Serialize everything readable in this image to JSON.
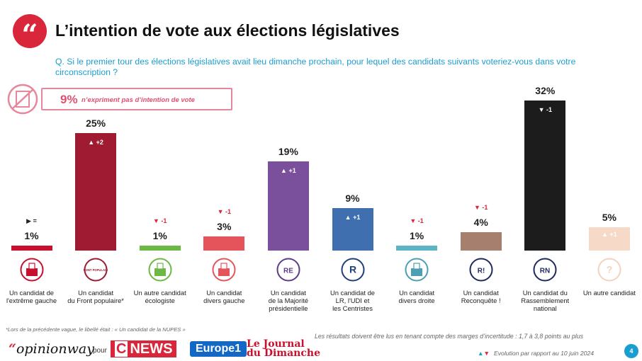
{
  "header": {
    "title": "L’intention de vote aux élections législatives",
    "question": "Q. Si le premier tour des élections législatives avait lieu dimanche prochain, pour lequel des candidats suivants voteriez-vous dans votre circonscription ?"
  },
  "no_intention": {
    "pct": "9%",
    "text": "n’expriment pas d’intention de vote"
  },
  "chart_data": {
    "type": "bar",
    "ylim": [
      0,
      32
    ],
    "categories": [
      "Un candidat de l'extrême gauche",
      "Un candidat du Front populaire*",
      "Un autre candidat écologiste",
      "Un candidat divers gauche",
      "Un candidat de la Majorité présidentielle",
      "Un candidat de LR, l'UDI et les Centristes",
      "Un candidat divers droite",
      "Un candidat Reconquête !",
      "Un candidat du Rassemblement national",
      "Un autre candidat"
    ],
    "values": [
      1,
      25,
      1,
      3,
      19,
      9,
      1,
      4,
      32,
      5
    ],
    "bars": [
      {
        "label_lines": [
          "Un candidat de",
          "l'extrême gauche"
        ],
        "value": 1,
        "pct": "1%",
        "evo": "=",
        "dir": "eq",
        "color": "#c8102e",
        "icon": "extreme-gauche-logo-icon",
        "icon_text": "",
        "icon_color": "#c8102e"
      },
      {
        "label_lines": [
          "Un candidat",
          "du Front populaire*"
        ],
        "value": 25,
        "pct": "25%",
        "evo": "+2",
        "dir": "up",
        "color": "#9e1b32",
        "icon": "front-populaire-logo-icon",
        "icon_text": "FRONT POPULAIRE",
        "icon_color": "#9e1b32"
      },
      {
        "label_lines": [
          "Un autre candidat",
          "écologiste"
        ],
        "value": 1,
        "pct": "1%",
        "evo": "-1",
        "dir": "down",
        "color": "#6bb844",
        "icon": "ecologiste-logo-icon",
        "icon_text": "",
        "icon_color": "#6bb844"
      },
      {
        "label_lines": [
          "Un candidat",
          "divers gauche"
        ],
        "value": 3,
        "pct": "3%",
        "evo": "-1",
        "dir": "down",
        "color": "#e5545b",
        "icon": "divers-gauche-logo-icon",
        "icon_text": "",
        "icon_color": "#e5545b"
      },
      {
        "label_lines": [
          "Un candidat",
          "de la Majorité",
          "présidentielle"
        ],
        "value": 19,
        "pct": "19%",
        "evo": "+1",
        "dir": "up",
        "color": "#7a4f9c",
        "icon": "renaissance-logo-icon",
        "icon_text": "RE",
        "icon_color": "#5c3c86"
      },
      {
        "label_lines": [
          "Un candidat de",
          "LR, l'UDI et",
          "les Centristes"
        ],
        "value": 9,
        "pct": "9%",
        "evo": "+1",
        "dir": "up",
        "color": "#3f6fae",
        "icon": "lr-logo-icon",
        "icon_text": "R",
        "icon_color": "#1f3f7a"
      },
      {
        "label_lines": [
          "Un candidat",
          "divers droite"
        ],
        "value": 1,
        "pct": "1%",
        "evo": "-1",
        "dir": "down",
        "color": "#5bb3c6",
        "icon": "divers-droite-logo-icon",
        "icon_text": "",
        "icon_color": "#4a9fb3"
      },
      {
        "label_lines": [
          "Un candidat",
          "Reconquête !"
        ],
        "value": 4,
        "pct": "4%",
        "evo": "-1",
        "dir": "down",
        "color": "#a77f6f",
        "icon": "reconquete-logo-icon",
        "icon_text": "R!",
        "icon_color": "#1f2a5c"
      },
      {
        "label_lines": [
          "Un candidat du",
          "Rassemblement",
          "national"
        ],
        "value": 32,
        "pct": "32%",
        "evo": "-1",
        "dir": "down",
        "color": "#1c1c1c",
        "icon": "rn-logo-icon",
        "icon_text": "RN",
        "icon_color": "#1f2a5c"
      },
      {
        "label_lines": [
          "Un autre candidat"
        ],
        "value": 5,
        "pct": "5%",
        "evo": "+1",
        "dir": "up",
        "color": "#f6d9c7",
        "icon": "autre-question-icon",
        "icon_text": "?",
        "icon_color": "#f3d2bf"
      }
    ]
  },
  "footer": {
    "footnote": "*Lors de la précédente vague, le libellé était : « Un candidat de la NUPES »",
    "margin_note": "Les résultats doivent être lus en tenant compte des marges d’incertitude : 1,7 à 3,8 points au plus",
    "evolution_legend": "Evolution par rapport au 10 juin 2024",
    "page_number": "4",
    "brands": {
      "opinionway": "opinionway",
      "pour": "pour",
      "cnews_c": "C",
      "cnews": "NEWS",
      "europe1": "Europe1",
      "jdd_line1": "Le Journal",
      "jdd_line2": "du Dimanche"
    }
  },
  "colors": {
    "accent_red": "#d9263a",
    "question_blue": "#1a9ecf",
    "up_arrow": "#1a9ecf",
    "down_arrow": "#d9263a"
  }
}
